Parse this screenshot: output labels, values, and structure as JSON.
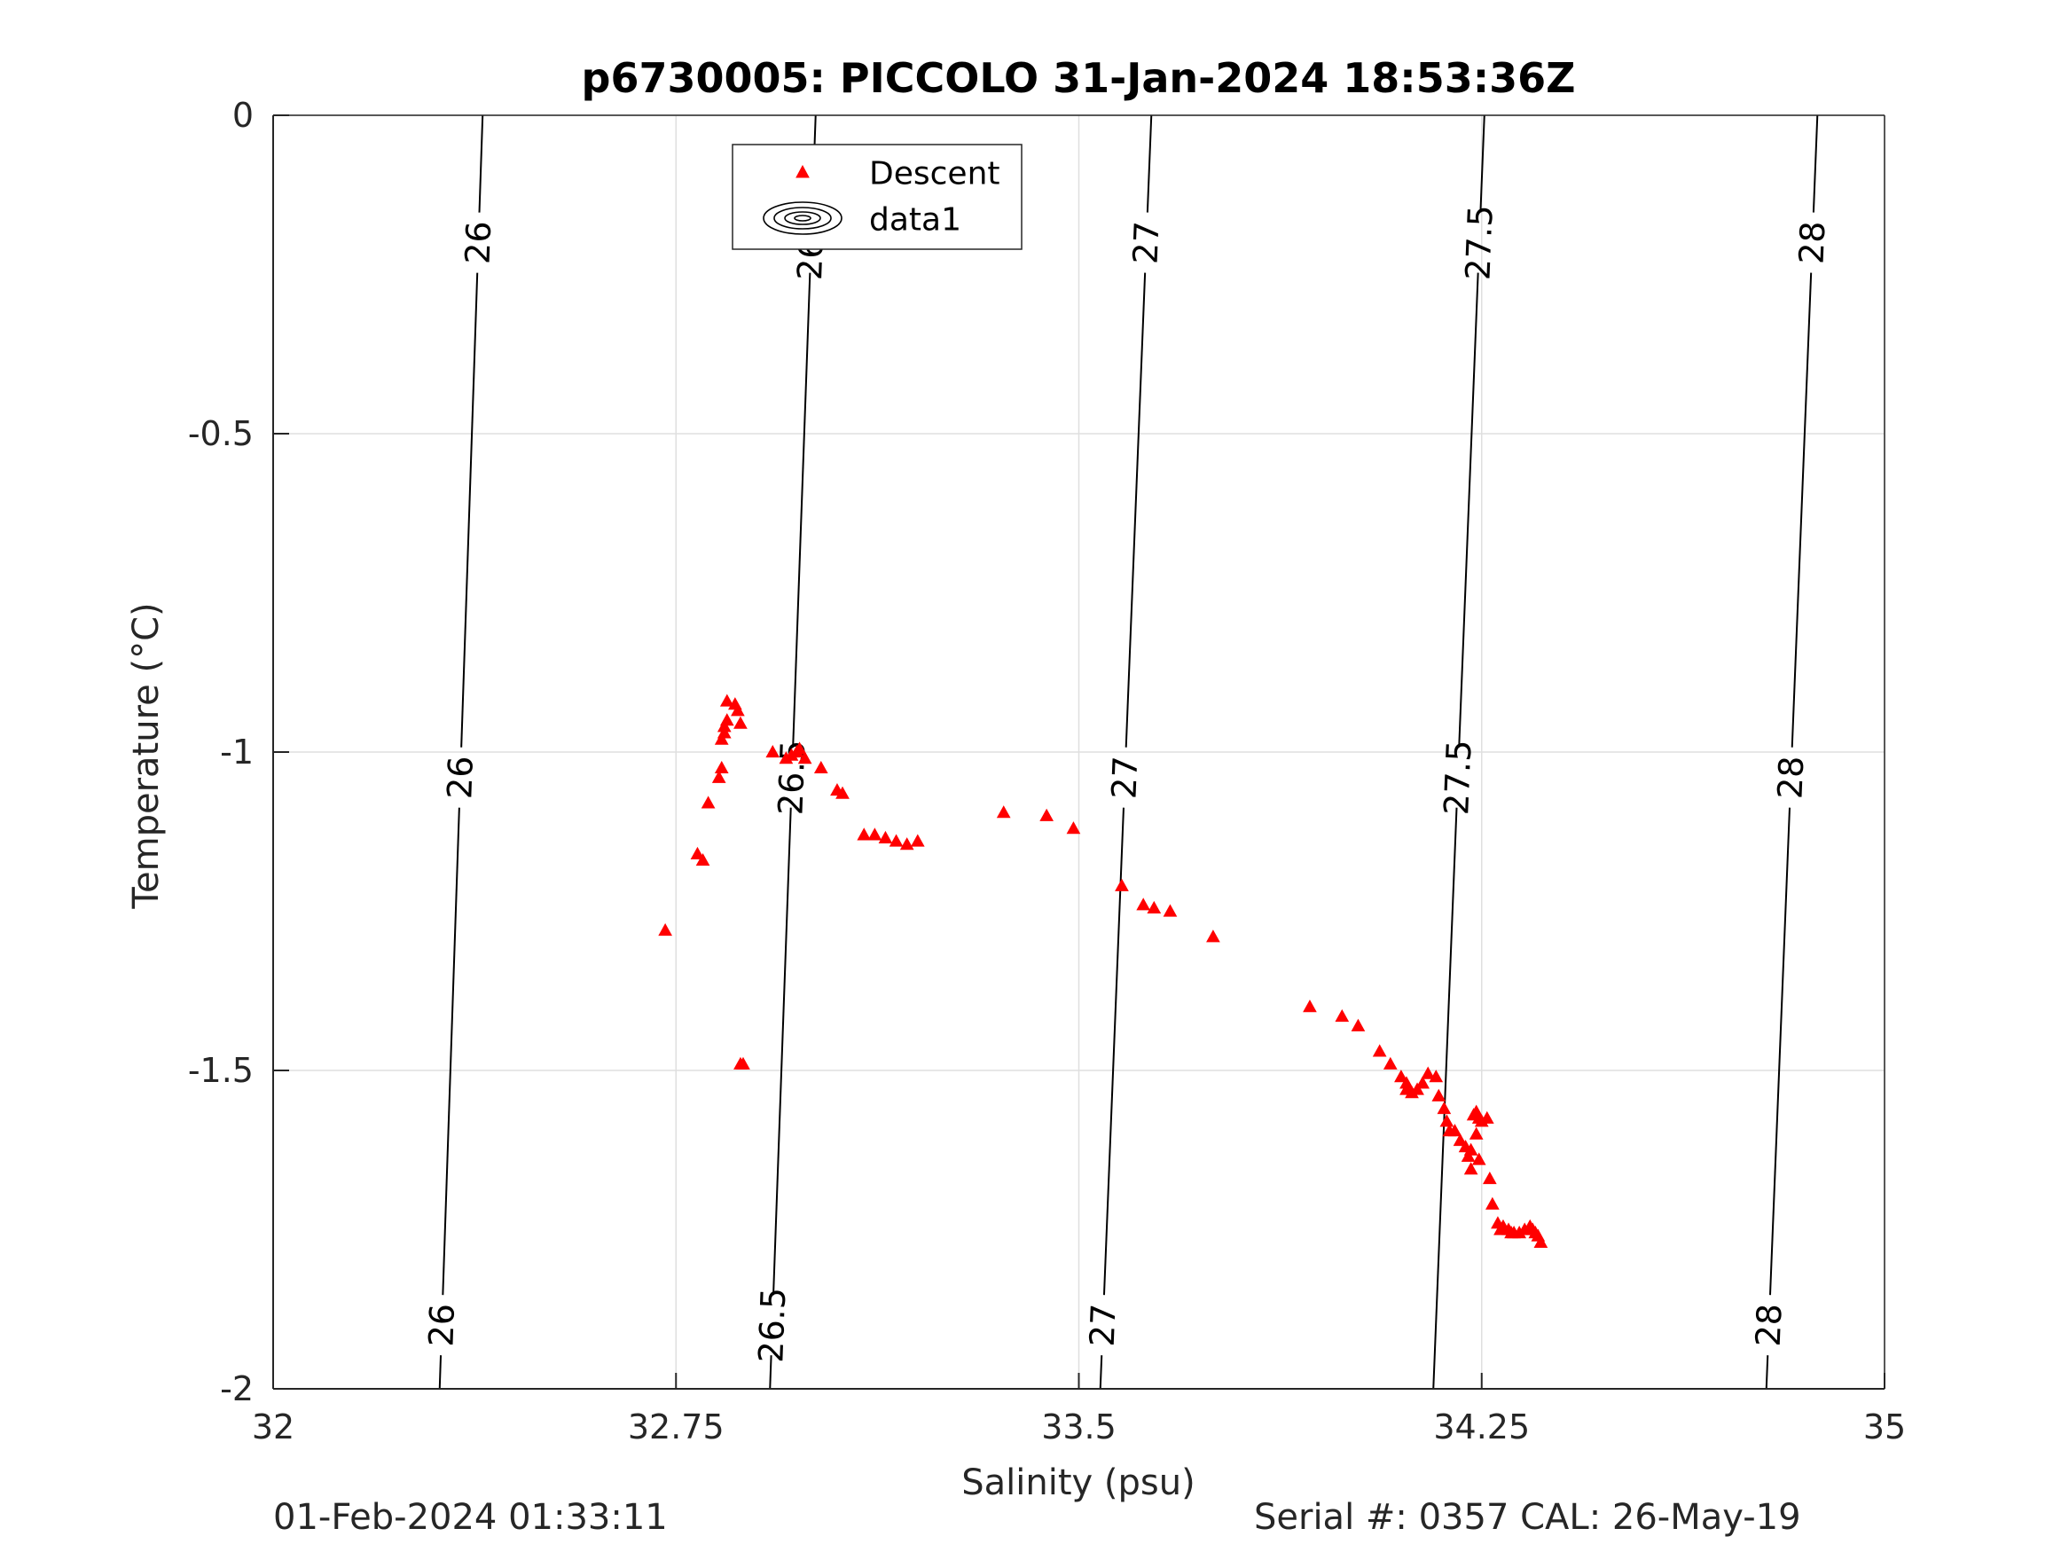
{
  "footer": {
    "timestamp": "01-Feb-2024 01:33:11",
    "serial": "Serial #: 0357  CAL: 26-May-19"
  },
  "chart_data": {
    "type": "scatter",
    "title": "p6730005: PICCOLO 31-Jan-2024 18:53:36Z",
    "xlabel": "Salinity (psu)",
    "ylabel": "Temperature (°C)",
    "xlim": [
      32,
      35
    ],
    "ylim": [
      -2,
      0
    ],
    "xticks": [
      32,
      32.75,
      33.5,
      34.25,
      35
    ],
    "xtick_labels": [
      "32",
      "32.75",
      "33.5",
      "34.25",
      "35"
    ],
    "yticks": [
      0,
      -0.5,
      -1,
      -1.5,
      -2
    ],
    "ytick_labels": [
      "0",
      "-0.5",
      "-1",
      "-1.5",
      "-2"
    ],
    "grid": true,
    "legend": {
      "position": "top-center",
      "entries": [
        "Descent",
        "data1"
      ]
    },
    "series": [
      {
        "name": "Descent",
        "marker": "triangle",
        "color": "#ff0000",
        "points": [
          [
            32.73,
            -1.28
          ],
          [
            32.79,
            -1.16
          ],
          [
            32.8,
            -1.17
          ],
          [
            32.81,
            -1.08
          ],
          [
            32.83,
            -1.04
          ],
          [
            32.835,
            -1.025
          ],
          [
            32.835,
            -0.98
          ],
          [
            32.84,
            -0.96
          ],
          [
            32.84,
            -0.97
          ],
          [
            32.845,
            -0.95
          ],
          [
            32.845,
            -0.92
          ],
          [
            32.86,
            -0.925
          ],
          [
            32.865,
            -0.935
          ],
          [
            32.87,
            -0.955
          ],
          [
            32.87,
            -1.49
          ],
          [
            32.875,
            -1.49
          ],
          [
            32.93,
            -1.0
          ],
          [
            32.955,
            -1.01
          ],
          [
            32.965,
            -1.005
          ],
          [
            32.975,
            -1.0
          ],
          [
            32.98,
            -0.995
          ],
          [
            32.99,
            -1.01
          ],
          [
            33.02,
            -1.025
          ],
          [
            33.05,
            -1.06
          ],
          [
            33.06,
            -1.065
          ],
          [
            33.1,
            -1.13
          ],
          [
            33.12,
            -1.13
          ],
          [
            33.14,
            -1.135
          ],
          [
            33.16,
            -1.14
          ],
          [
            33.18,
            -1.145
          ],
          [
            33.2,
            -1.14
          ],
          [
            33.36,
            -1.095
          ],
          [
            33.44,
            -1.1
          ],
          [
            33.49,
            -1.12
          ],
          [
            33.58,
            -1.21
          ],
          [
            33.62,
            -1.24
          ],
          [
            33.64,
            -1.245
          ],
          [
            33.67,
            -1.25
          ],
          [
            33.75,
            -1.29
          ],
          [
            33.93,
            -1.4
          ],
          [
            33.99,
            -1.415
          ],
          [
            34.02,
            -1.43
          ],
          [
            34.06,
            -1.47
          ],
          [
            34.08,
            -1.49
          ],
          [
            34.1,
            -1.51
          ],
          [
            34.11,
            -1.52
          ],
          [
            34.11,
            -1.53
          ],
          [
            34.12,
            -1.535
          ],
          [
            34.13,
            -1.53
          ],
          [
            34.14,
            -1.52
          ],
          [
            34.15,
            -1.505
          ],
          [
            34.165,
            -1.51
          ],
          [
            34.17,
            -1.54
          ],
          [
            34.18,
            -1.56
          ],
          [
            34.185,
            -1.58
          ],
          [
            34.19,
            -1.595
          ],
          [
            34.2,
            -1.595
          ],
          [
            34.21,
            -1.61
          ],
          [
            34.22,
            -1.62
          ],
          [
            34.225,
            -1.635
          ],
          [
            34.23,
            -1.625
          ],
          [
            34.23,
            -1.655
          ],
          [
            34.235,
            -1.57
          ],
          [
            34.24,
            -1.565
          ],
          [
            34.245,
            -1.575
          ],
          [
            34.24,
            -1.6
          ],
          [
            34.245,
            -1.64
          ],
          [
            34.25,
            -1.58
          ],
          [
            34.26,
            -1.575
          ],
          [
            34.265,
            -1.67
          ],
          [
            34.27,
            -1.71
          ],
          [
            34.28,
            -1.74
          ],
          [
            34.285,
            -1.75
          ],
          [
            34.29,
            -1.745
          ],
          [
            34.3,
            -1.75
          ],
          [
            34.305,
            -1.755
          ],
          [
            34.31,
            -1.755
          ],
          [
            34.32,
            -1.755
          ],
          [
            34.33,
            -1.75
          ],
          [
            34.34,
            -1.745
          ],
          [
            34.345,
            -1.75
          ],
          [
            34.35,
            -1.755
          ],
          [
            34.355,
            -1.76
          ],
          [
            34.36,
            -1.77
          ]
        ]
      }
    ],
    "isopycnals": [
      {
        "label": "26",
        "s_at_t0": 32.39,
        "s_at_tm2": 32.31,
        "label_t": [
          -0.2,
          -1.04,
          -1.9
        ]
      },
      {
        "label": "26.5",
        "s_at_t0": 33.01,
        "s_at_tm2": 32.925,
        "label_t": [
          -0.2,
          -1.04,
          -1.9
        ]
      },
      {
        "label": "27",
        "s_at_t0": 33.635,
        "s_at_tm2": 33.54,
        "label_t": [
          -0.2,
          -1.04,
          -1.9
        ]
      },
      {
        "label": "27.5",
        "s_at_t0": 34.255,
        "s_at_tm2": 34.16,
        "label_t": [
          -0.2,
          -1.04
        ]
      },
      {
        "label": "28",
        "s_at_t0": 34.875,
        "s_at_tm2": 34.78,
        "label_t": [
          -0.2,
          -1.04,
          -1.9
        ]
      }
    ]
  }
}
